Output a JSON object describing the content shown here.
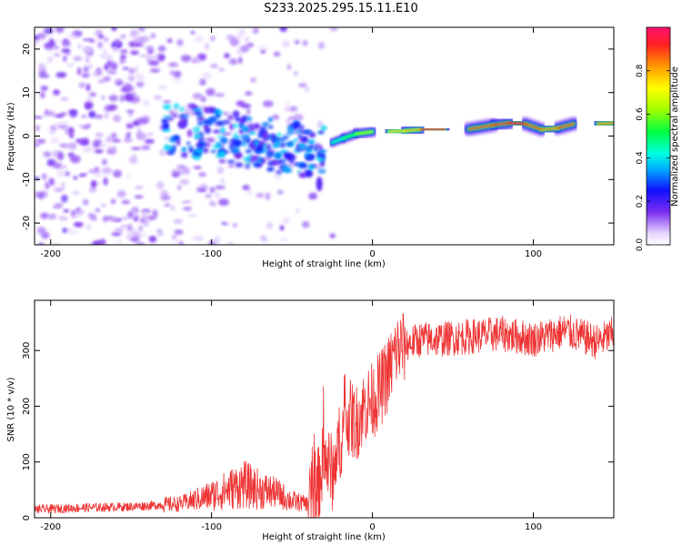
{
  "title": "S233.2025.295.15.11.E10",
  "chart_data": [
    {
      "type": "heatmap",
      "name": "spectrogram",
      "xlabel": "Height of straight line (km)",
      "ylabel": "Frequency (Hz)",
      "xlim": [
        -210,
        150
      ],
      "ylim": [
        -25,
        25
      ],
      "xticks": [
        -200,
        -100,
        0,
        100
      ],
      "yticks": [
        -20,
        -10,
        0,
        10,
        20
      ],
      "colorbar": {
        "label": "Normalized spectral amplitude",
        "range": [
          0,
          1
        ],
        "ticks": [
          0.0,
          0.2,
          0.4,
          0.6,
          0.8
        ]
      },
      "ridge": [
        {
          "x": -25,
          "y": -1.5,
          "amp": 0.35
        },
        {
          "x": -18,
          "y": -0.5,
          "amp": 0.45
        },
        {
          "x": -10,
          "y": 0.5,
          "amp": 0.55
        },
        {
          "x": 0,
          "y": 1.0,
          "amp": 0.7
        },
        {
          "x": 10,
          "y": 1.0,
          "amp": 0.8
        },
        {
          "x": 20,
          "y": 1.2,
          "amp": 0.7
        },
        {
          "x": 30,
          "y": 1.5,
          "amp": 0.85
        },
        {
          "x": 45,
          "y": 1.6,
          "amp": 0.95
        },
        {
          "x": 60,
          "y": 1.6,
          "amp": 0.9
        },
        {
          "x": 75,
          "y": 2.5,
          "amp": 0.85
        },
        {
          "x": 85,
          "y": 3.0,
          "amp": 0.95
        },
        {
          "x": 95,
          "y": 2.8,
          "amp": 0.9
        },
        {
          "x": 105,
          "y": 1.5,
          "amp": 0.85
        },
        {
          "x": 115,
          "y": 1.8,
          "amp": 0.8
        },
        {
          "x": 125,
          "y": 2.8,
          "amp": 0.95
        },
        {
          "x": 140,
          "y": 2.8,
          "amp": 0.9
        },
        {
          "x": 150,
          "y": 3.0,
          "amp": 0.75
        }
      ]
    },
    {
      "type": "line",
      "name": "snr",
      "xlabel": "Height of straight line (km)",
      "ylabel": "SNR (10 * v/v)",
      "xlim": [
        -210,
        150
      ],
      "ylim": [
        0,
        390
      ],
      "xticks": [
        -200,
        -100,
        0,
        100
      ],
      "yticks": [
        0,
        100,
        200,
        300
      ],
      "color": "#ee3333",
      "x": [
        -210,
        -180,
        -150,
        -120,
        -100,
        -90,
        -80,
        -70,
        -60,
        -50,
        -40,
        -35,
        -30,
        -25,
        -20,
        -15,
        -10,
        -5,
        0,
        5,
        10,
        15,
        20,
        30,
        40,
        60,
        80,
        100,
        120,
        140,
        150
      ],
      "y": [
        15,
        18,
        20,
        25,
        40,
        50,
        60,
        50,
        45,
        30,
        25,
        40,
        110,
        80,
        140,
        180,
        170,
        200,
        210,
        230,
        260,
        300,
        310,
        320,
        320,
        325,
        330,
        320,
        335,
        315,
        330
      ]
    }
  ]
}
